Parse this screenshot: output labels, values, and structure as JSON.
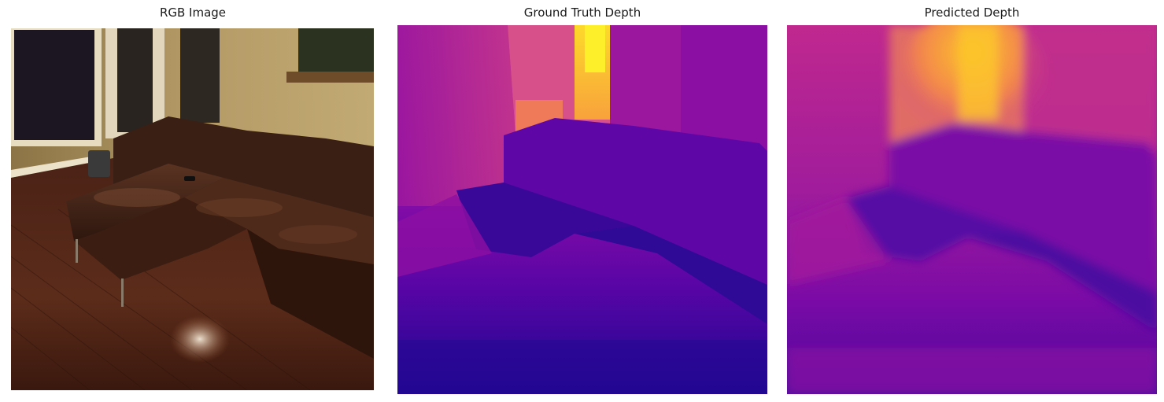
{
  "figure": {
    "panels": [
      {
        "title": "RGB Image"
      },
      {
        "title": "Ground Truth Depth"
      },
      {
        "title": "Predicted Depth"
      }
    ],
    "colormap": "plasma",
    "colors": {
      "plasma_low": "#1a0a8a",
      "plasma_mid": "#9a16a4",
      "plasma_high": "#f9e224",
      "sofa_brown": "#4a2a1c",
      "wall_beige": "#b59c6b",
      "floor_wood": "#5a2a18"
    }
  }
}
